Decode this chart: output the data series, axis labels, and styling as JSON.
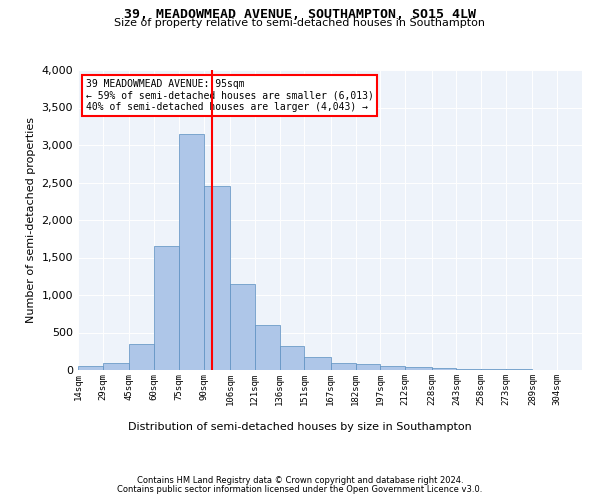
{
  "title1": "39, MEADOWMEAD AVENUE, SOUTHAMPTON, SO15 4LW",
  "title2": "Size of property relative to semi-detached houses in Southampton",
  "xlabel": "Distribution of semi-detached houses by size in Southampton",
  "ylabel": "Number of semi-detached properties",
  "footer1": "Contains HM Land Registry data © Crown copyright and database right 2024.",
  "footer2": "Contains public sector information licensed under the Open Government Licence v3.0.",
  "annotation_title": "39 MEADOWMEAD AVENUE: 95sqm",
  "annotation_line1": "← 59% of semi-detached houses are smaller (6,013)",
  "annotation_line2": "40% of semi-detached houses are larger (4,043) →",
  "bar_edges": [
    14,
    29,
    45,
    60,
    75,
    90,
    106,
    121,
    136,
    151,
    167,
    182,
    197,
    212,
    228,
    243,
    258,
    273,
    289,
    304,
    319
  ],
  "bar_heights": [
    50,
    100,
    350,
    1650,
    3150,
    2450,
    1150,
    600,
    325,
    175,
    100,
    75,
    55,
    40,
    30,
    20,
    10,
    10,
    5,
    5
  ],
  "bar_color": "#aec6e8",
  "bar_edge_color": "#5a8fc0",
  "vline_x": 95,
  "vline_color": "red",
  "background_color": "#eef3fa",
  "ylim_max": 4000,
  "yticks": [
    0,
    500,
    1000,
    1500,
    2000,
    2500,
    3000,
    3500,
    4000
  ]
}
